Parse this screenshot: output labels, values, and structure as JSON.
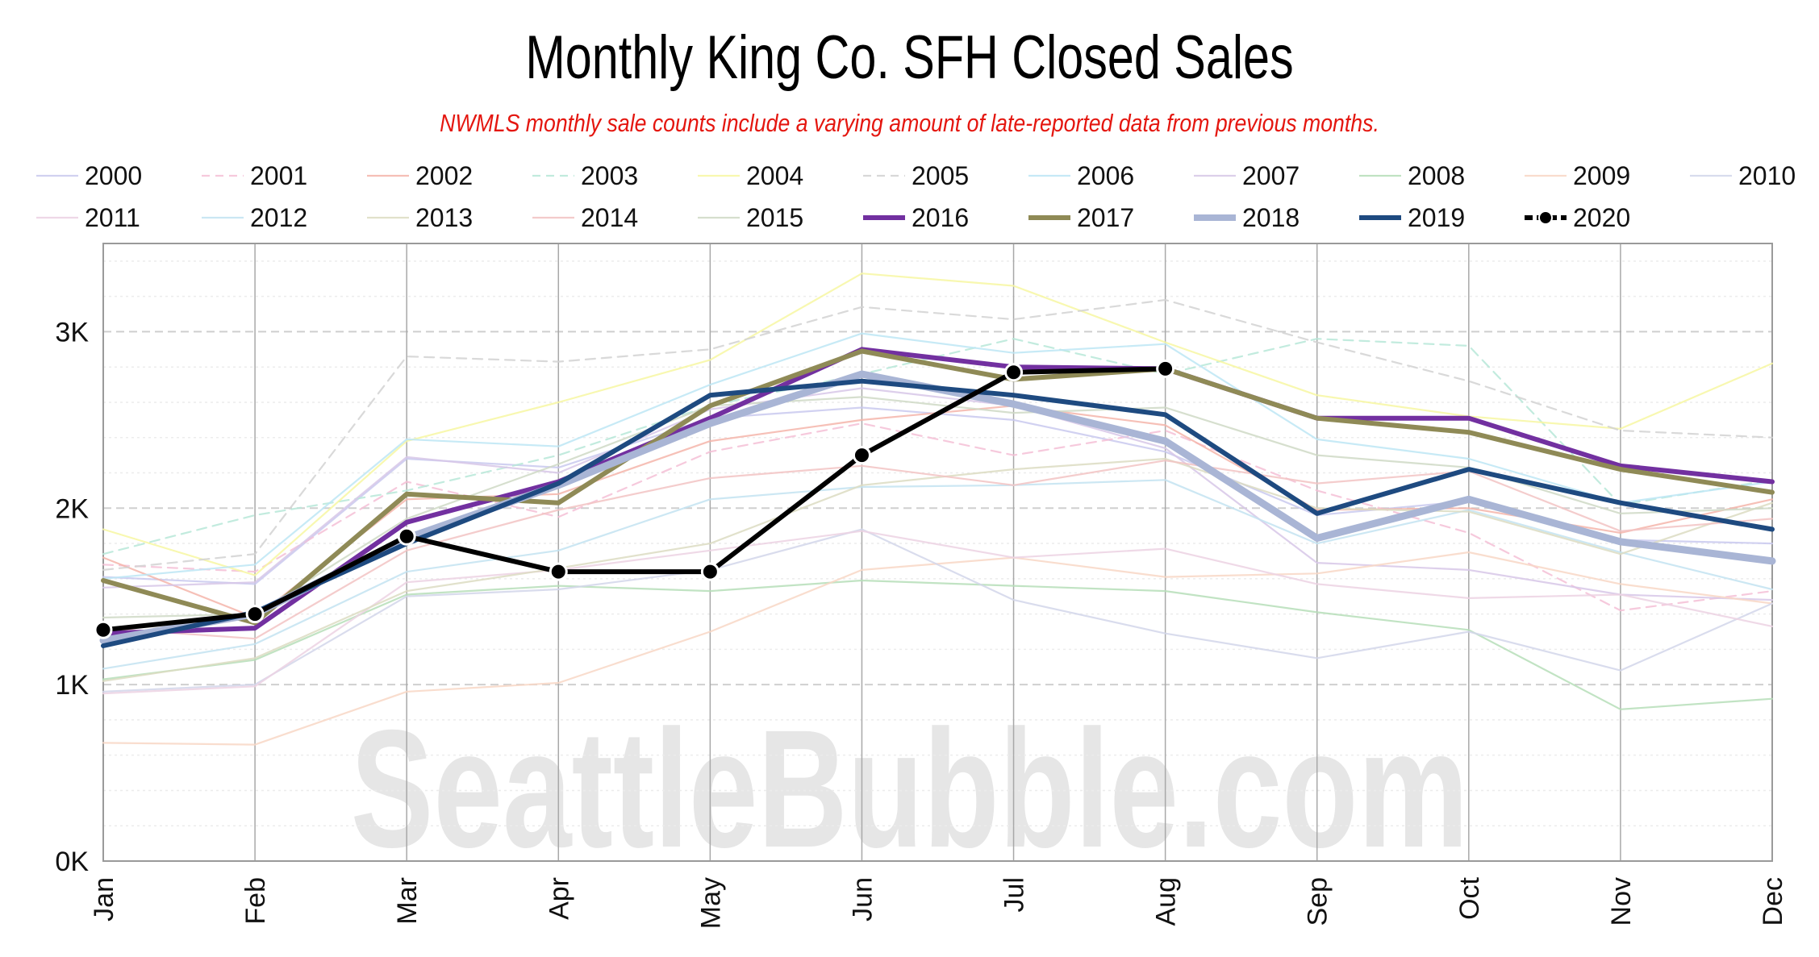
{
  "header": {
    "title": "Monthly King Co. SFH Closed Sales",
    "subtitle": "NWMLS monthly sale counts include a varying amount of late-reported data from previous months."
  },
  "watermark": "SeattleBubble.com",
  "chart_data": {
    "type": "line",
    "title": "Monthly King Co. SFH Closed Sales",
    "subtitle": "NWMLS monthly sale counts include a varying amount of late-reported data from previous months.",
    "xlabel": "",
    "ylabel": "",
    "categories": [
      "Jan",
      "Feb",
      "Mar",
      "Apr",
      "May",
      "Jun",
      "Jul",
      "Aug",
      "Sep",
      "Oct",
      "Nov",
      "Dec"
    ],
    "ylim": [
      0,
      3500
    ],
    "yticks": [
      0,
      1000,
      2000,
      3000
    ],
    "ytick_labels": [
      "0K",
      "1K",
      "2K",
      "3K"
    ],
    "grid": true,
    "legend": "top",
    "series": [
      {
        "name": "2000",
        "color": "#c9c9ee",
        "dashed": false,
        "emphasis": false,
        "values": [
          1610,
          1570,
          2280,
          2230,
          2510,
          2570,
          2500,
          2320,
          1960,
          2040,
          1820,
          1800
        ]
      },
      {
        "name": "2001",
        "color": "#f5c0d6",
        "dashed": true,
        "emphasis": false,
        "values": [
          1680,
          1640,
          2150,
          1950,
          2320,
          2480,
          2300,
          2440,
          2100,
          1860,
          1420,
          1530
        ]
      },
      {
        "name": "2002",
        "color": "#f4b5aa",
        "dashed": false,
        "emphasis": false,
        "values": [
          1720,
          1380,
          2050,
          2080,
          2380,
          2500,
          2580,
          2470,
          1990,
          2000,
          1860,
          2050
        ]
      },
      {
        "name": "2003",
        "color": "#b7e8d8",
        "dashed": true,
        "emphasis": false,
        "values": [
          1740,
          1960,
          2100,
          2300,
          2580,
          2760,
          2960,
          2760,
          2960,
          2920,
          2020,
          2160
        ]
      },
      {
        "name": "2004",
        "color": "#f7f7a2",
        "dashed": false,
        "emphasis": false,
        "values": [
          1880,
          1620,
          2380,
          2600,
          2840,
          3330,
          3260,
          2940,
          2640,
          2520,
          2450,
          2820
        ]
      },
      {
        "name": "2005",
        "color": "#d2d2d2",
        "dashed": true,
        "emphasis": false,
        "values": [
          1650,
          1740,
          2860,
          2830,
          2900,
          3140,
          3070,
          3180,
          2940,
          2720,
          2440,
          2400
        ]
      },
      {
        "name": "2006",
        "color": "#bde6f5",
        "dashed": false,
        "emphasis": false,
        "values": [
          1600,
          1680,
          2390,
          2350,
          2700,
          2990,
          2880,
          2930,
          2390,
          2280,
          2030,
          2150
        ]
      },
      {
        "name": "2007",
        "color": "#d7c7e7",
        "dashed": false,
        "emphasis": false,
        "values": [
          1550,
          1580,
          2290,
          2200,
          2560,
          2680,
          2580,
          2340,
          1690,
          1650,
          1510,
          1480
        ]
      },
      {
        "name": "2008",
        "color": "#b6deb8",
        "dashed": false,
        "emphasis": false,
        "values": [
          1030,
          1140,
          1510,
          1560,
          1530,
          1590,
          1560,
          1530,
          1410,
          1310,
          860,
          920
        ]
      },
      {
        "name": "2009",
        "color": "#f8d7c5",
        "dashed": false,
        "emphasis": false,
        "values": [
          670,
          660,
          960,
          1010,
          1300,
          1650,
          1720,
          1610,
          1630,
          1750,
          1570,
          1460
        ]
      },
      {
        "name": "2010",
        "color": "#d2d6ea",
        "dashed": false,
        "emphasis": false,
        "values": [
          960,
          1000,
          1500,
          1540,
          1650,
          1880,
          1480,
          1290,
          1150,
          1300,
          1080,
          1460
        ]
      },
      {
        "name": "2011",
        "color": "#ecd2e3",
        "dashed": false,
        "emphasis": false,
        "values": [
          950,
          990,
          1580,
          1650,
          1760,
          1870,
          1720,
          1770,
          1570,
          1490,
          1510,
          1330
        ]
      },
      {
        "name": "2012",
        "color": "#c3e3f1",
        "dashed": false,
        "emphasis": false,
        "values": [
          1090,
          1230,
          1640,
          1760,
          2050,
          2120,
          2130,
          2160,
          1800,
          1990,
          1750,
          1540
        ]
      },
      {
        "name": "2013",
        "color": "#dcdcc2",
        "dashed": false,
        "emphasis": false,
        "values": [
          1020,
          1150,
          1530,
          1660,
          1800,
          2130,
          2220,
          2280,
          2000,
          1980,
          1740,
          2030
        ]
      },
      {
        "name": "2014",
        "color": "#f2c3c3",
        "dashed": false,
        "emphasis": false,
        "values": [
          1320,
          1260,
          1760,
          1990,
          2170,
          2240,
          2130,
          2270,
          2140,
          2210,
          1870,
          1940
        ]
      },
      {
        "name": "2015",
        "color": "#cfd9c5",
        "dashed": false,
        "emphasis": false,
        "values": [
          1380,
          1400,
          1940,
          2250,
          2580,
          2630,
          2540,
          2570,
          2300,
          2230,
          1970,
          2000
        ]
      },
      {
        "name": "2016",
        "color": "#7230a0",
        "dashed": false,
        "emphasis": true,
        "values": [
          1290,
          1320,
          1920,
          2150,
          2510,
          2900,
          2800,
          2790,
          2510,
          2510,
          2240,
          2150
        ]
      },
      {
        "name": "2017",
        "color": "#8f8a56",
        "dashed": false,
        "emphasis": true,
        "values": [
          1590,
          1350,
          2080,
          2030,
          2580,
          2890,
          2730,
          2790,
          2510,
          2430,
          2220,
          2090
        ]
      },
      {
        "name": "2018",
        "color": "#a9b5d5",
        "dashed": false,
        "emphasis": true,
        "values": [
          1250,
          1400,
          1830,
          2130,
          2480,
          2760,
          2590,
          2380,
          1830,
          2050,
          1810,
          1700
        ]
      },
      {
        "name": "2019",
        "color": "#1e4a80",
        "dashed": false,
        "emphasis": true,
        "values": [
          1220,
          1410,
          1800,
          2140,
          2640,
          2720,
          2640,
          2530,
          1970,
          2220,
          2030,
          1880
        ]
      },
      {
        "name": "2020",
        "color": "#000000",
        "dashed": true,
        "emphasis": true,
        "markers": true,
        "values": [
          1310,
          1400,
          1840,
          1640,
          1640,
          2300,
          2770,
          2790,
          null,
          null,
          null,
          null
        ]
      }
    ]
  }
}
